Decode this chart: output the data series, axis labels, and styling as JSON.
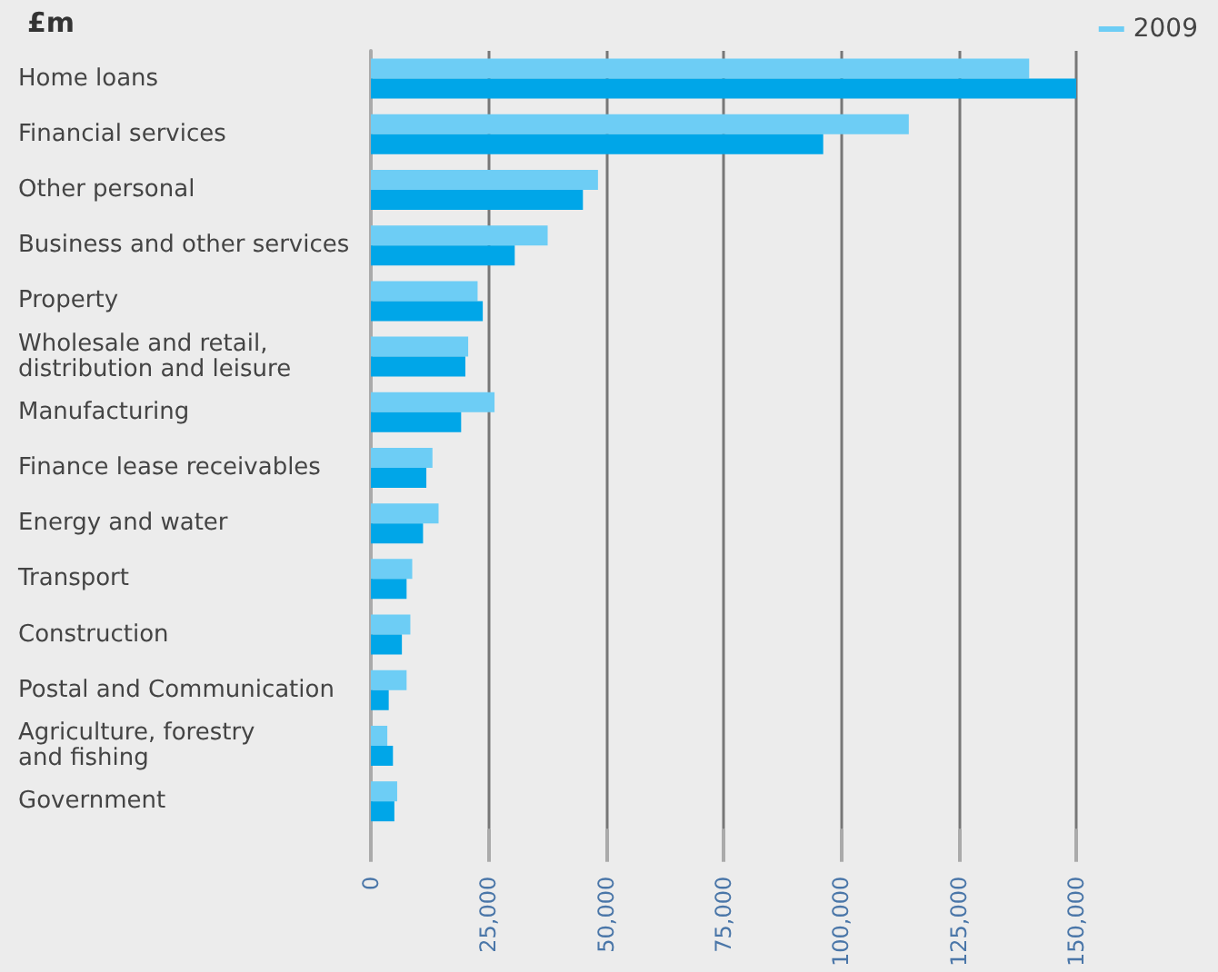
{
  "chart_data": {
    "type": "bar",
    "orientation": "horizontal",
    "ylabel": "£m",
    "categories": [
      "Home loans",
      "Financial services",
      "Other personal",
      "Business and other services",
      "Property",
      "Wholesale and retail,\ndistribution and leisure",
      "Manufacturing",
      "Finance lease receivables",
      "Energy and water",
      "Transport",
      "Construction",
      "Postal and Communication",
      "Agriculture, forestry\nand fishing",
      "Government"
    ],
    "series": [
      {
        "name": "2009",
        "color": "#6dcdf5",
        "values": [
          140000,
          114400,
          48300,
          37600,
          22700,
          20700,
          26300,
          13100,
          14400,
          8800,
          8400,
          7600,
          3500,
          5600
        ]
      },
      {
        "color": "#00a6e8",
        "values": [
          150000,
          96200,
          45100,
          30600,
          23800,
          20100,
          19200,
          11800,
          11100,
          7600,
          6600,
          3800,
          4700,
          5000
        ]
      }
    ],
    "xlim": [
      0,
      150000
    ],
    "xticks": [
      0,
      {
        "value": 25000,
        "label": "25,000"
      },
      {
        "value": 50000,
        "label": "50,000"
      },
      {
        "value": 75000,
        "label": "75,000"
      },
      {
        "value": 100000,
        "label": "100,000"
      },
      {
        "value": 125000,
        "label": "125,000"
      },
      {
        "value": 150000,
        "label": "150,000"
      }
    ],
    "grid": "x",
    "legend": "top right"
  }
}
